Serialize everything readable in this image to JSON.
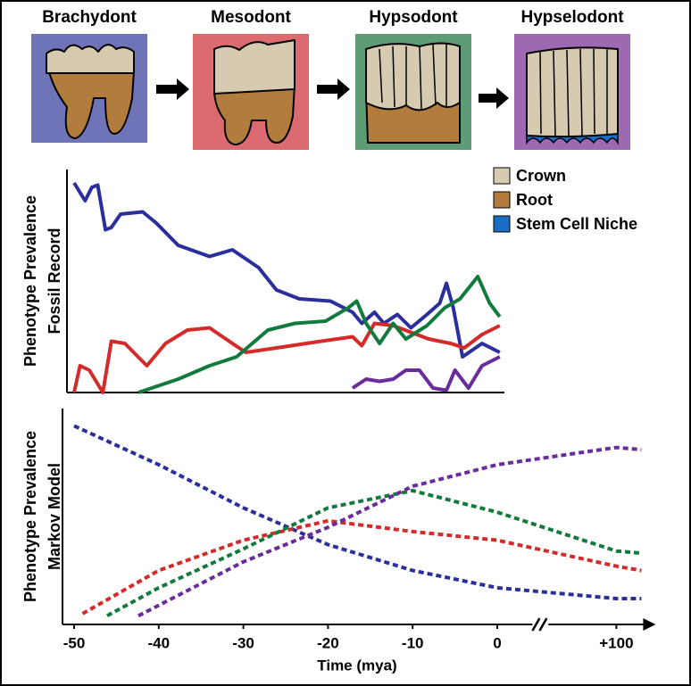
{
  "stages": [
    {
      "label": "Brachydont",
      "color": "#6f74b8"
    },
    {
      "label": "Mesodont",
      "color": "#db6b71"
    },
    {
      "label": "Hypsodont",
      "color": "#5e9c78"
    },
    {
      "label": "Hypselodont",
      "color": "#9e68b3"
    }
  ],
  "legend": [
    {
      "label": "Crown",
      "color": "#d6cbb0"
    },
    {
      "label": "Root",
      "color": "#b27c3c"
    },
    {
      "label": "Stem Cell Niche",
      "color": "#1a6fc4"
    }
  ],
  "chart_data": [
    {
      "type": "line",
      "ylabel": [
        "Phenotype Prevalence",
        "Fossil Record"
      ],
      "ylim": [
        0,
        1
      ],
      "xlim": [
        -52,
        103
      ],
      "series": [
        {
          "color": "#2b2f9c",
          "x": [
            -50,
            -48.7,
            -47.9,
            -47.2,
            -46.3,
            -45.6,
            -44.5,
            -41.9,
            -40.3,
            -37.7,
            -34,
            -31.3,
            -28.2,
            -26.1,
            -23.4,
            -19.7,
            -17.1,
            -16,
            -14.5,
            -13.4,
            -11.8,
            -10.2,
            -8.3,
            -6.8,
            -6,
            -5.2,
            -4.1,
            -1.8,
            0.3
          ],
          "values": [
            0.94,
            0.86,
            0.92,
            0.93,
            0.73,
            0.74,
            0.8,
            0.81,
            0.76,
            0.66,
            0.61,
            0.64,
            0.56,
            0.46,
            0.42,
            0.41,
            0.36,
            0.31,
            0.36,
            0.31,
            0.35,
            0.29,
            0.35,
            0.4,
            0.49,
            0.38,
            0.16,
            0.22,
            0.18
          ]
        },
        {
          "color": "#d42a2a",
          "x": [
            -50,
            -49.3,
            -48.2,
            -46.6,
            -45.6,
            -44,
            -41.4,
            -39.2,
            -36.6,
            -34,
            -31.3,
            -29.7,
            -26.1,
            -20.8,
            -17.1,
            -16,
            -14.5,
            -12.3,
            -8.1,
            -5.5,
            -3.9,
            -1.8,
            0.3
          ],
          "values": [
            0,
            0.12,
            0.1,
            0,
            0.23,
            0.22,
            0.12,
            0.22,
            0.28,
            0.29,
            0.22,
            0.18,
            0.2,
            0.23,
            0.25,
            0.21,
            0.31,
            0.3,
            0.24,
            0.22,
            0.2,
            0.26,
            0.3
          ]
        },
        {
          "color": "#117a3c",
          "x": [
            -42.4,
            -37.7,
            -34,
            -30.8,
            -27.1,
            -23.9,
            -20.3,
            -17.6,
            -16.6,
            -15.5,
            -13.9,
            -12.3,
            -10.8,
            -8.3,
            -6.2,
            -4.4,
            -2.3,
            -0.9,
            0.3
          ],
          "values": [
            0,
            0.06,
            0.12,
            0.16,
            0.28,
            0.31,
            0.32,
            0.38,
            0.41,
            0.31,
            0.22,
            0.31,
            0.24,
            0.3,
            0.38,
            0.42,
            0.52,
            0.4,
            0.34
          ]
        },
        {
          "color": "#6a2b9c",
          "x": [
            -17.1,
            -15.5,
            -13.9,
            -12.3,
            -10.8,
            -9.2,
            -7.6,
            -6,
            -5,
            -3.4,
            -1.8,
            0.3
          ],
          "values": [
            0.02,
            0.06,
            0.05,
            0.06,
            0.1,
            0.1,
            0.02,
            0.01,
            0.1,
            0.02,
            0.12,
            0.16
          ]
        }
      ]
    },
    {
      "type": "line",
      "dashed": true,
      "ylabel": [
        "Phenotype Prevalence",
        "Markov Model"
      ],
      "xlabel": "Time (mya)",
      "ylim": [
        0,
        1
      ],
      "xlim": [
        -52,
        103
      ],
      "axis_break": [
        5,
        95
      ],
      "xticks": [
        -50,
        -40,
        -30,
        -20,
        -10,
        0,
        {
          "value": 100,
          "label": "+100"
        }
      ],
      "series": [
        {
          "color": "#2b2f9c",
          "x": [
            -50,
            -40,
            -30,
            -20,
            -10,
            0,
            100,
            102
          ],
          "values": [
            0.92,
            0.74,
            0.54,
            0.37,
            0.25,
            0.17,
            0.12,
            0.12
          ]
        },
        {
          "color": "#d42a2a",
          "x": [
            -49,
            -40,
            -30,
            -20,
            -10,
            0,
            100,
            102
          ],
          "values": [
            0.05,
            0.25,
            0.39,
            0.48,
            0.43,
            0.39,
            0.27,
            0.25
          ]
        },
        {
          "color": "#117a3c",
          "x": [
            -46.1,
            -40,
            -30,
            -20,
            -10,
            0,
            100,
            102
          ],
          "values": [
            0.04,
            0.17,
            0.35,
            0.54,
            0.62,
            0.52,
            0.34,
            0.33
          ]
        },
        {
          "color": "#6a2b9c",
          "x": [
            -42.4,
            -30,
            -20,
            -10,
            0,
            100,
            102
          ],
          "values": [
            0.04,
            0.29,
            0.45,
            0.64,
            0.74,
            0.82,
            0.81
          ]
        }
      ]
    }
  ]
}
